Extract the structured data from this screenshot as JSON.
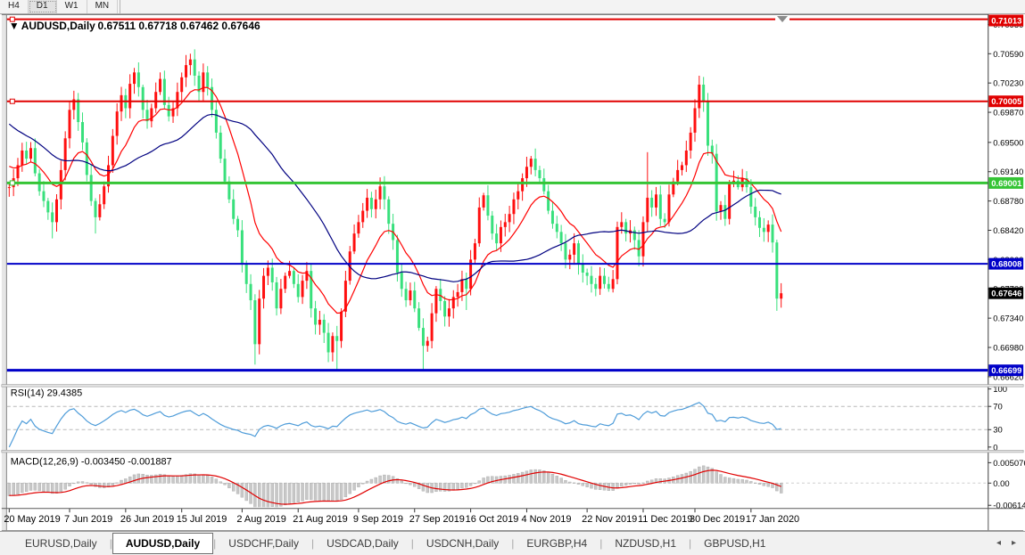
{
  "toolbar": {
    "buttons": [
      {
        "label": "H4",
        "active": false
      },
      {
        "label": "D1",
        "active": true
      },
      {
        "label": "W1",
        "active": false
      },
      {
        "label": "MN",
        "active": false
      }
    ]
  },
  "chart": {
    "collapse_icon": "▼",
    "symbol_label": "AUDUSD,Daily",
    "ohlc": "0.67511 0.67718 0.67462 0.67646",
    "open": "0.67511",
    "high": "0.67718",
    "low": "0.67462",
    "close": "0.67646"
  },
  "indicators": {
    "rsi": {
      "display": "RSI(14) 29.4385",
      "name": "RSI(14)",
      "value": "29.4385",
      "scale_labels": [
        "100",
        "70",
        "30",
        "0"
      ]
    },
    "macd": {
      "display": "MACD(12,26,9) -0.003450 -0.001887",
      "name": "MACD(12,26,9)",
      "value_main": "-0.003450",
      "value_signal": "-0.001887",
      "scale_labels": [
        "0.005076",
        "0.00",
        "-0.006148"
      ]
    }
  },
  "tabs": {
    "items": [
      {
        "label": "EURUSD,Daily",
        "active": false
      },
      {
        "label": "AUDUSD,Daily",
        "active": true
      },
      {
        "label": "USDCHF,Daily",
        "active": false
      },
      {
        "label": "USDCAD,Daily",
        "active": false
      },
      {
        "label": "USDCNH,Daily",
        "active": false
      },
      {
        "label": "EURGBP,H4",
        "active": false
      },
      {
        "label": "NZDUSD,H1",
        "active": false
      },
      {
        "label": "GBPUSD,H1",
        "active": false
      }
    ],
    "scroll_left_icon": "◂",
    "scroll_right_icon": "▸"
  },
  "chart_data": {
    "type": "candlestick",
    "symbol": "AUDUSD",
    "timeframe": "Daily",
    "color_convention": "red = bullish, green = bearish",
    "bull_color": "#FF0F0F",
    "bear_color": "#38E07C",
    "ohlc_current": {
      "open": 0.67511,
      "high": 0.67718,
      "low": 0.67462,
      "close": 0.67646
    },
    "current_price": 0.67646,
    "current_price_tag_color": "#000000",
    "y_ticks": [
      "0.70950",
      "0.70590",
      "0.70230",
      "0.69870",
      "0.69500",
      "0.69140",
      "0.68780",
      "0.68420",
      "0.68060",
      "0.67700",
      "0.67340",
      "0.66980",
      "0.66620"
    ],
    "hlines": [
      {
        "price": 0.71013,
        "label": "0.71013",
        "color": "#E00000",
        "width": 2,
        "handle": true
      },
      {
        "price": 0.70005,
        "label": "0.70005",
        "color": "#E00000",
        "width": 2,
        "handle": true
      },
      {
        "price": 0.69001,
        "label": "0.69001",
        "color": "#35C435",
        "width": 3,
        "handle": true
      },
      {
        "price": 0.68008,
        "label": "0.68008",
        "color": "#0000C8",
        "width": 2,
        "handle": false
      },
      {
        "price": 0.66699,
        "label": "0.66699",
        "color": "#0000C8",
        "width": 3,
        "handle": false
      }
    ],
    "ma": [
      {
        "period": 13,
        "method": "ema",
        "color": "#FF0000"
      },
      {
        "period": 34,
        "method": "sma",
        "color": "#000080"
      }
    ],
    "rsi": {
      "period": 14,
      "levels": [
        70,
        30
      ],
      "color": "#4E9CD9",
      "last": 29.4385
    },
    "macd": {
      "fast": 12,
      "slow": 26,
      "signal": 9,
      "hist_color": "#C8C8C8",
      "hist_edge": "#A8A8A8",
      "signal_color": "#E00000",
      "last": -0.00345,
      "last_signal": -0.001887
    },
    "x_labels": [
      {
        "text": "20 May 2019",
        "bar": 0
      },
      {
        "text": "7 Jun 2019",
        "bar": 14
      },
      {
        "text": "26 Jun 2019",
        "bar": 27
      },
      {
        "text": "15 Jul 2019",
        "bar": 40
      },
      {
        "text": "2 Aug 2019",
        "bar": 54
      },
      {
        "text": "21 Aug 2019",
        "bar": 67
      },
      {
        "text": "9 Sep 2019",
        "bar": 81
      },
      {
        "text": "27 Sep 2019",
        "bar": 94
      },
      {
        "text": "16 Oct 2019",
        "bar": 107
      },
      {
        "text": "4 Nov 2019",
        "bar": 120
      },
      {
        "text": "22 Nov 2019",
        "bar": 134
      },
      {
        "text": "11 Dec 2019",
        "bar": 147
      },
      {
        "text": "30 Dec 2019",
        "bar": 159
      },
      {
        "text": "17 Jan 2020",
        "bar": 172
      }
    ],
    "closes": [
      0.6895,
      0.6906,
      0.6922,
      0.694,
      0.693,
      0.6943,
      0.6912,
      0.689,
      0.6878,
      0.6864,
      0.6852,
      0.688,
      0.6916,
      0.6955,
      0.699,
      0.7003,
      0.6975,
      0.695,
      0.691,
      0.6878,
      0.6858,
      0.6874,
      0.6896,
      0.6922,
      0.6958,
      0.6988,
      0.7008,
      0.6992,
      0.7022,
      0.7036,
      0.7018,
      0.699,
      0.6976,
      0.6992,
      0.7012,
      0.7028,
      0.6996,
      0.6982,
      0.6992,
      0.7012,
      0.703,
      0.7045,
      0.7052,
      0.7032,
      0.7012,
      0.7036,
      0.7018,
      0.699,
      0.6962,
      0.693,
      0.6902,
      0.688,
      0.6856,
      0.6842,
      0.68,
      0.6776,
      0.6756,
      0.6702,
      0.6758,
      0.6786,
      0.6796,
      0.6778,
      0.6746,
      0.677,
      0.6786,
      0.6792,
      0.6776,
      0.676,
      0.678,
      0.6792,
      0.6746,
      0.6726,
      0.6732,
      0.6716,
      0.6692,
      0.6712,
      0.6706,
      0.6742,
      0.678,
      0.6816,
      0.6838,
      0.6852,
      0.6866,
      0.6882,
      0.6868,
      0.688,
      0.6896,
      0.688,
      0.685,
      0.683,
      0.679,
      0.677,
      0.6756,
      0.6768,
      0.6746,
      0.6722,
      0.67,
      0.6706,
      0.674,
      0.677,
      0.6755,
      0.6736,
      0.6746,
      0.676,
      0.6766,
      0.6782,
      0.677,
      0.6806,
      0.6826,
      0.687,
      0.6885,
      0.686,
      0.6838,
      0.6826,
      0.6846,
      0.6852,
      0.6862,
      0.688,
      0.689,
      0.6906,
      0.692,
      0.693,
      0.6916,
      0.6906,
      0.689,
      0.6866,
      0.685,
      0.684,
      0.6826,
      0.6806,
      0.6812,
      0.6826,
      0.68,
      0.679,
      0.6786,
      0.6776,
      0.677,
      0.6786,
      0.6776,
      0.677,
      0.6782,
      0.6846,
      0.6852,
      0.6838,
      0.6842,
      0.683,
      0.681,
      0.6852,
      0.6882,
      0.687,
      0.6886,
      0.6856,
      0.6852,
      0.6886,
      0.6902,
      0.6916,
      0.6922,
      0.694,
      0.6962,
      0.6992,
      0.7021,
      0.7,
      0.6946,
      0.6936,
      0.6865,
      0.6873,
      0.6856,
      0.69,
      0.6903,
      0.6895,
      0.6906,
      0.6895,
      0.6871,
      0.6858,
      0.6845,
      0.684,
      0.6849,
      0.6827,
      0.6758,
      0.67646
    ],
    "wick_overrides": {
      "10": {
        "low": 0.6832
      },
      "20": {
        "low": 0.6838
      },
      "42": {
        "high": 0.7059
      },
      "45": {
        "high": 0.7047
      },
      "57": {
        "low": 0.6677
      },
      "76": {
        "low": 0.667
      },
      "86": {
        "high": 0.6907
      },
      "96": {
        "low": 0.667
      },
      "106": {
        "low": 0.6744
      },
      "148": {
        "high": 0.6938
      },
      "160": {
        "high": 0.7032
      },
      "178": {
        "low": 0.6743
      }
    }
  }
}
